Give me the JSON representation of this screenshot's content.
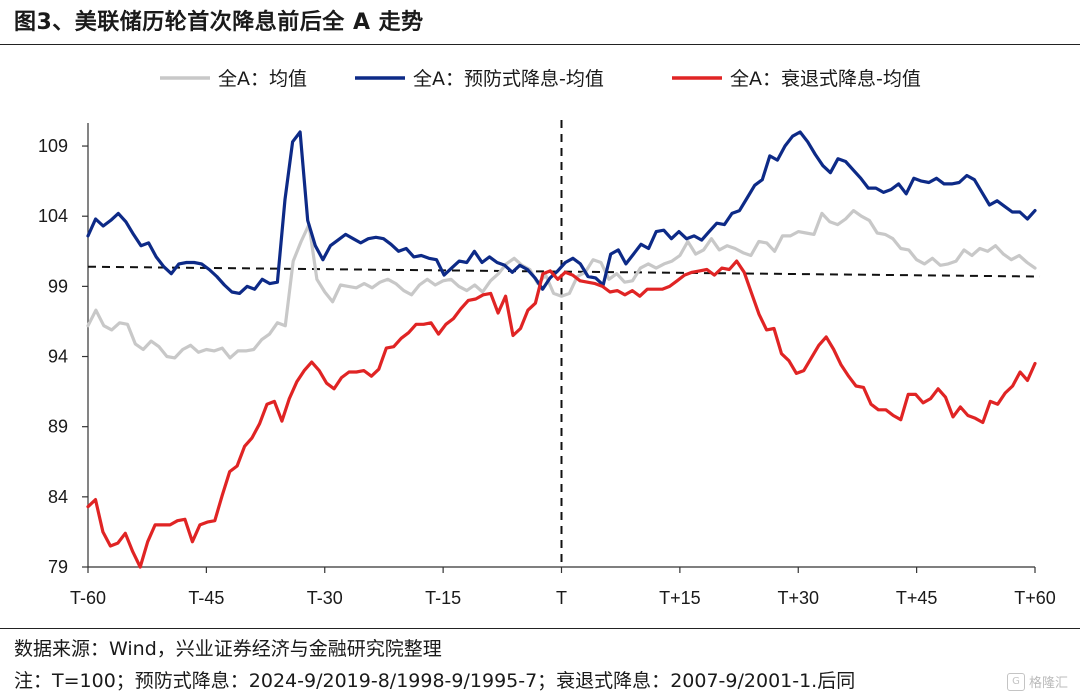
{
  "title": "图3、美联储历轮首次降息前后全 A 走势",
  "source": "数据来源：Wind，兴业证券经济与金融研究院整理",
  "note": "注：T=100；预防式降息：2024-9/2019-8/1998-9/1995-7；衰退式降息：2007-9/2001-1.后同",
  "watermark": "格隆汇",
  "colors": {
    "gray": "#c8c8c8",
    "navy": "#0d2a87",
    "red": "#e02424"
  },
  "chart_data": {
    "type": "line",
    "x_ticks": [
      "T-60",
      "T-45",
      "T-30",
      "T-15",
      "T",
      "T+15",
      "T+30",
      "T+45",
      "T+60"
    ],
    "x_range": [
      -60,
      60
    ],
    "y_ticks": [
      "79",
      "84",
      "89",
      "94",
      "99",
      "104",
      "109"
    ],
    "ylim": [
      79,
      110.5
    ],
    "reference_lines": {
      "vertical_x": 0,
      "horizontal_y": 100
    },
    "series": [
      {
        "name": "全A：均值",
        "color": "#c8c8c8",
        "values": [
          96.2,
          97.3,
          96.2,
          95.9,
          96.4,
          96.3,
          94.9,
          94.5,
          95.1,
          94.7,
          94.0,
          93.9,
          94.5,
          94.8,
          94.3,
          94.5,
          94.4,
          94.6,
          93.9,
          94.4,
          94.4,
          94.5,
          95.2,
          95.6,
          96.4,
          96.2,
          100.8,
          102.2,
          103.4,
          99.5,
          98.6,
          97.9,
          99.1,
          99.0,
          98.9,
          99.2,
          98.9,
          99.3,
          99.5,
          99.2,
          98.7,
          98.4,
          99.1,
          99.5,
          99.1,
          99.4,
          99.5,
          99.0,
          98.7,
          99.1,
          98.6,
          99.4,
          99.9,
          100.6,
          101.0,
          100.5,
          100.2,
          99.2,
          99.8,
          98.5,
          98.3,
          98.5,
          99.7,
          100.0,
          100.9,
          100.7,
          99.5,
          99.9,
          99.3,
          99.4,
          100.3,
          100.6,
          100.3,
          100.6,
          100.8,
          101.2,
          102.2,
          101.3,
          101.6,
          102.4,
          101.6,
          101.9,
          101.7,
          101.4,
          101.2,
          102.2,
          102.1,
          101.5,
          102.6,
          102.6,
          102.9,
          102.8,
          102.7,
          104.2,
          103.6,
          103.4,
          103.8,
          104.4,
          104.0,
          103.7,
          102.8,
          102.7,
          102.4,
          101.7,
          101.6,
          100.9,
          100.6,
          101.0,
          100.5,
          100.6,
          100.8,
          101.6,
          101.2,
          101.7,
          101.5,
          101.9,
          101.3,
          100.9,
          101.2,
          100.7,
          100.3
        ]
      },
      {
        "name": "全A：预防式降息-均值",
        "color": "#0d2a87",
        "values": [
          102.6,
          103.8,
          103.3,
          103.7,
          104.2,
          103.6,
          102.7,
          101.9,
          102.1,
          101.1,
          100.4,
          99.9,
          100.6,
          100.7,
          100.7,
          100.6,
          100.2,
          99.7,
          99.1,
          98.6,
          98.5,
          99.0,
          98.8,
          99.5,
          99.2,
          99.3,
          105.2,
          109.3,
          110.0,
          103.7,
          101.9,
          100.9,
          101.9,
          102.3,
          102.7,
          102.4,
          102.1,
          102.4,
          102.5,
          102.4,
          102.0,
          101.5,
          101.7,
          101.1,
          101.2,
          101.0,
          100.9,
          99.8,
          100.3,
          100.8,
          100.7,
          101.5,
          100.7,
          101.1,
          100.7,
          100.5,
          100.0,
          100.5,
          100.2,
          99.6,
          98.8,
          99.6,
          100.1,
          100.7,
          101.0,
          100.6,
          99.7,
          99.6,
          99.1,
          101.3,
          101.6,
          100.6,
          101.3,
          102.0,
          101.7,
          102.9,
          103.0,
          102.4,
          102.9,
          102.4,
          102.6,
          102.3,
          102.9,
          103.5,
          103.4,
          104.2,
          104.4,
          105.3,
          106.2,
          106.6,
          108.3,
          108.0,
          109.0,
          109.7,
          110.0,
          109.3,
          108.4,
          107.6,
          107.1,
          108.1,
          107.9,
          107.3,
          106.7,
          106.0,
          106.0,
          105.7,
          105.9,
          106.3,
          105.6,
          106.7,
          106.5,
          106.4,
          106.7,
          106.3,
          106.3,
          106.4,
          106.9,
          106.6,
          105.7,
          104.8,
          105.1,
          104.7,
          104.3,
          104.3,
          103.8,
          104.4
        ]
      },
      {
        "name": "全A：衰退式降息-均值",
        "color": "#e02424",
        "values": [
          83.3,
          83.8,
          81.5,
          80.5,
          80.7,
          81.4,
          80.1,
          79.0,
          80.8,
          82.0,
          82.0,
          82.0,
          82.3,
          82.4,
          80.8,
          82.0,
          82.2,
          82.3,
          84.1,
          85.8,
          86.2,
          87.6,
          88.2,
          89.2,
          90.6,
          90.8,
          89.4,
          91.0,
          92.2,
          93.0,
          93.6,
          93.0,
          92.1,
          91.7,
          92.5,
          92.9,
          92.9,
          93.0,
          92.6,
          93.1,
          94.6,
          94.7,
          95.3,
          95.7,
          96.3,
          96.3,
          96.4,
          95.6,
          96.3,
          96.7,
          97.4,
          98.0,
          98.1,
          98.4,
          98.5,
          97.1,
          98.3,
          95.5,
          96.0,
          97.3,
          97.8,
          99.9,
          100.1,
          99.5,
          100.0,
          99.8,
          99.4,
          99.3,
          99.2,
          99.0,
          98.6,
          98.7,
          98.4,
          98.7,
          98.3,
          98.8,
          98.8,
          98.8,
          99.0,
          99.4,
          99.8,
          100.0,
          100.1,
          100.2,
          99.8,
          100.3,
          100.2,
          100.8,
          100.0,
          98.5,
          97.0,
          95.9,
          96.0,
          94.2,
          93.7,
          92.8,
          93.0,
          93.9,
          94.8,
          95.4,
          94.5,
          93.4,
          92.6,
          91.9,
          91.8,
          90.6,
          90.2,
          90.2,
          89.8,
          89.5,
          91.3,
          91.3,
          90.7,
          91.0,
          91.7,
          91.1,
          89.7,
          90.4,
          89.8,
          89.6,
          89.3,
          90.8,
          90.6,
          91.4,
          91.9,
          92.9,
          92.3,
          93.5
        ]
      }
    ],
    "legend_position": "top",
    "grid": false
  }
}
